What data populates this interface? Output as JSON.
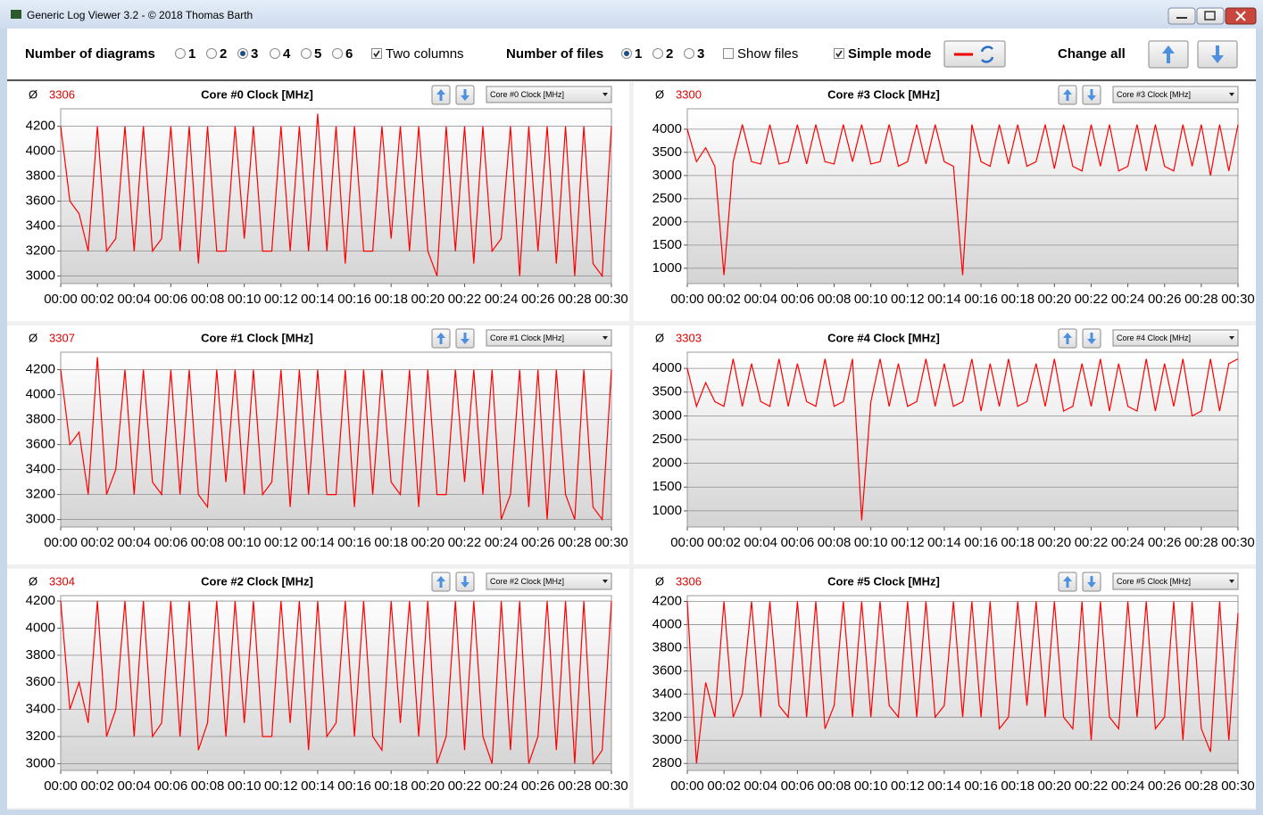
{
  "window": {
    "title": "Generic Log Viewer 3.2 - © 2018 Thomas Barth"
  },
  "toolbar": {
    "diagrams_label": "Number of diagrams",
    "diagram_options": [
      "1",
      "2",
      "3",
      "4",
      "5",
      "6"
    ],
    "diagrams_selected": 2,
    "two_columns_label": "Two columns",
    "two_columns": true,
    "files_label": "Number of files",
    "file_options": [
      "1",
      "2",
      "3"
    ],
    "files_selected": 0,
    "show_files_label": "Show files",
    "show_files": false,
    "simple_mode_label": "Simple mode",
    "simple_mode": true,
    "change_all_label": "Change all"
  },
  "chart_data": [
    {
      "type": "line",
      "title": "Core #0 Clock [MHz]",
      "avg_symbol": "Ø",
      "average": 3306,
      "color": "#ff0000",
      "x": [
        0,
        0.5,
        1,
        1.5,
        2,
        2.5,
        3,
        3.5,
        4,
        4.5,
        5,
        5.5,
        6,
        6.5,
        7,
        7.5,
        8,
        8.5,
        9,
        9.5,
        10,
        10.5,
        11,
        11.5,
        12,
        12.5,
        13,
        13.5,
        14,
        14.5,
        15,
        15.5,
        16,
        16.5,
        17,
        17.5,
        18,
        18.5,
        19,
        19.5,
        20,
        20.5,
        21,
        21.5,
        22,
        22.5,
        23,
        23.5,
        24,
        24.5,
        25,
        25.5,
        26,
        26.5,
        27,
        27.5,
        28,
        28.5,
        29,
        29.5,
        30
      ],
      "values": [
        4200,
        3600,
        3500,
        3200,
        4200,
        3200,
        3300,
        4200,
        3200,
        4200,
        3200,
        3300,
        4200,
        3200,
        4200,
        3100,
        4200,
        3200,
        3200,
        4200,
        3300,
        4200,
        3200,
        3200,
        4200,
        3200,
        4200,
        3200,
        4300,
        3200,
        4200,
        3100,
        4200,
        3200,
        3200,
        4200,
        3300,
        4200,
        3200,
        4200,
        3200,
        3000,
        4200,
        3200,
        4200,
        3100,
        4200,
        3200,
        3300,
        4200,
        3000,
        4200,
        3200,
        4200,
        3100,
        4200,
        3000,
        4200,
        3100,
        3000,
        4200
      ],
      "xlim": [
        0,
        30
      ],
      "ylim": [
        2940,
        4340
      ],
      "yticks": [
        3000,
        3200,
        3400,
        3600,
        3800,
        4000,
        4200
      ],
      "xticks": [
        {
          "value": 0,
          "label": "00:00"
        },
        {
          "value": 2,
          "label": "00:02"
        },
        {
          "value": 4,
          "label": "00:04"
        },
        {
          "value": 6,
          "label": "00:06"
        },
        {
          "value": 8,
          "label": "00:08"
        },
        {
          "value": 10,
          "label": "00:10"
        },
        {
          "value": 12,
          "label": "00:12"
        },
        {
          "value": 14,
          "label": "00:14"
        },
        {
          "value": 16,
          "label": "00:16"
        },
        {
          "value": 18,
          "label": "00:18"
        },
        {
          "value": 20,
          "label": "00:20"
        },
        {
          "value": 22,
          "label": "00:22"
        },
        {
          "value": 24,
          "label": "00:24"
        },
        {
          "value": 26,
          "label": "00:26"
        },
        {
          "value": 28,
          "label": "00:28"
        },
        {
          "value": 30,
          "label": "00:30"
        }
      ],
      "grid": true
    },
    {
      "type": "line",
      "title": "Core #1 Clock [MHz]",
      "avg_symbol": "Ø",
      "average": 3307,
      "color": "#ff0000",
      "x": [
        0,
        0.5,
        1,
        1.5,
        2,
        2.5,
        3,
        3.5,
        4,
        4.5,
        5,
        5.5,
        6,
        6.5,
        7,
        7.5,
        8,
        8.5,
        9,
        9.5,
        10,
        10.5,
        11,
        11.5,
        12,
        12.5,
        13,
        13.5,
        14,
        14.5,
        15,
        15.5,
        16,
        16.5,
        17,
        17.5,
        18,
        18.5,
        19,
        19.5,
        20,
        20.5,
        21,
        21.5,
        22,
        22.5,
        23,
        23.5,
        24,
        24.5,
        25,
        25.5,
        26,
        26.5,
        27,
        27.5,
        28,
        28.5,
        29,
        29.5,
        30
      ],
      "values": [
        4200,
        3600,
        3700,
        3200,
        4300,
        3200,
        3400,
        4200,
        3200,
        4200,
        3300,
        3200,
        4200,
        3200,
        4200,
        3200,
        3100,
        4200,
        3300,
        4200,
        3200,
        4200,
        3200,
        3300,
        4200,
        3100,
        4200,
        3200,
        4200,
        3200,
        3200,
        4200,
        3100,
        4200,
        3200,
        4200,
        3300,
        3200,
        4200,
        3100,
        4200,
        3200,
        3200,
        4200,
        3300,
        4200,
        3200,
        4200,
        3000,
        3200,
        4200,
        3100,
        4200,
        3000,
        4200,
        3200,
        3000,
        4200,
        3100,
        3000,
        4200
      ],
      "xlim": [
        0,
        30
      ],
      "ylim": [
        2940,
        4340
      ],
      "yticks": [
        3000,
        3200,
        3400,
        3600,
        3800,
        4000,
        4200
      ],
      "xticks": [
        {
          "value": 0,
          "label": "00:00"
        },
        {
          "value": 2,
          "label": "00:02"
        },
        {
          "value": 4,
          "label": "00:04"
        },
        {
          "value": 6,
          "label": "00:06"
        },
        {
          "value": 8,
          "label": "00:08"
        },
        {
          "value": 10,
          "label": "00:10"
        },
        {
          "value": 12,
          "label": "00:12"
        },
        {
          "value": 14,
          "label": "00:14"
        },
        {
          "value": 16,
          "label": "00:16"
        },
        {
          "value": 18,
          "label": "00:18"
        },
        {
          "value": 20,
          "label": "00:20"
        },
        {
          "value": 22,
          "label": "00:22"
        },
        {
          "value": 24,
          "label": "00:24"
        },
        {
          "value": 26,
          "label": "00:26"
        },
        {
          "value": 28,
          "label": "00:28"
        },
        {
          "value": 30,
          "label": "00:30"
        }
      ],
      "grid": true
    },
    {
      "type": "line",
      "title": "Core #2 Clock [MHz]",
      "avg_symbol": "Ø",
      "average": 3304,
      "color": "#ff0000",
      "x": [
        0,
        0.5,
        1,
        1.5,
        2,
        2.5,
        3,
        3.5,
        4,
        4.5,
        5,
        5.5,
        6,
        6.5,
        7,
        7.5,
        8,
        8.5,
        9,
        9.5,
        10,
        10.5,
        11,
        11.5,
        12,
        12.5,
        13,
        13.5,
        14,
        14.5,
        15,
        15.5,
        16,
        16.5,
        17,
        17.5,
        18,
        18.5,
        19,
        19.5,
        20,
        20.5,
        21,
        21.5,
        22,
        22.5,
        23,
        23.5,
        24,
        24.5,
        25,
        25.5,
        26,
        26.5,
        27,
        27.5,
        28,
        28.5,
        29,
        29.5,
        30
      ],
      "values": [
        4200,
        3400,
        3600,
        3300,
        4200,
        3200,
        3400,
        4200,
        3200,
        4200,
        3200,
        3300,
        4200,
        3200,
        4200,
        3100,
        3300,
        4200,
        3200,
        4200,
        3300,
        4200,
        3200,
        3200,
        4200,
        3300,
        4200,
        3100,
        4200,
        3200,
        3300,
        4200,
        3200,
        4200,
        3200,
        3100,
        4200,
        3300,
        4200,
        3200,
        4200,
        3000,
        3200,
        4200,
        3100,
        4200,
        3200,
        3000,
        4200,
        3100,
        4200,
        3000,
        3200,
        4200,
        3100,
        4200,
        3000,
        4200,
        3000,
        3100,
        4200
      ],
      "xlim": [
        0,
        30
      ],
      "ylim": [
        2950,
        4240
      ],
      "yticks": [
        3000,
        3200,
        3400,
        3600,
        3800,
        4000,
        4200
      ],
      "xticks": [
        {
          "value": 0,
          "label": "00:00"
        },
        {
          "value": 2,
          "label": "00:02"
        },
        {
          "value": 4,
          "label": "00:04"
        },
        {
          "value": 6,
          "label": "00:06"
        },
        {
          "value": 8,
          "label": "00:08"
        },
        {
          "value": 10,
          "label": "00:10"
        },
        {
          "value": 12,
          "label": "00:12"
        },
        {
          "value": 14,
          "label": "00:14"
        },
        {
          "value": 16,
          "label": "00:16"
        },
        {
          "value": 18,
          "label": "00:18"
        },
        {
          "value": 20,
          "label": "00:20"
        },
        {
          "value": 22,
          "label": "00:22"
        },
        {
          "value": 24,
          "label": "00:24"
        },
        {
          "value": 26,
          "label": "00:26"
        },
        {
          "value": 28,
          "label": "00:28"
        },
        {
          "value": 30,
          "label": "00:30"
        }
      ],
      "grid": true
    },
    {
      "type": "line",
      "title": "Core #3 Clock [MHz]",
      "avg_symbol": "Ø",
      "average": 3300,
      "color": "#ff0000",
      "x": [
        0,
        0.5,
        1,
        1.5,
        2,
        2.5,
        3,
        3.5,
        4,
        4.5,
        5,
        5.5,
        6,
        6.5,
        7,
        7.5,
        8,
        8.5,
        9,
        9.5,
        10,
        10.5,
        11,
        11.5,
        12,
        12.5,
        13,
        13.5,
        14,
        14.5,
        15,
        15.5,
        16,
        16.5,
        17,
        17.5,
        18,
        18.5,
        19,
        19.5,
        20,
        20.5,
        21,
        21.5,
        22,
        22.5,
        23,
        23.5,
        24,
        24.5,
        25,
        25.5,
        26,
        26.5,
        27,
        27.5,
        28,
        28.5,
        29,
        29.5,
        30
      ],
      "values": [
        4000,
        3300,
        3600,
        3200,
        850,
        3300,
        4100,
        3300,
        3250,
        4100,
        3250,
        3300,
        4100,
        3250,
        4100,
        3300,
        3250,
        4100,
        3300,
        4100,
        3250,
        3300,
        4100,
        3200,
        3300,
        4100,
        3250,
        4100,
        3300,
        3200,
        850,
        4100,
        3300,
        3200,
        4100,
        3250,
        4100,
        3200,
        3300,
        4100,
        3150,
        4100,
        3200,
        3100,
        4100,
        3200,
        4100,
        3100,
        3200,
        4100,
        3100,
        4100,
        3200,
        3100,
        4100,
        3200,
        4100,
        3000,
        4100,
        3100,
        4100
      ],
      "xlim": [
        0,
        30
      ],
      "ylim": [
        670,
        4440
      ],
      "yticks": [
        1000,
        1500,
        2000,
        2500,
        3000,
        3500,
        4000
      ],
      "xticks": [
        {
          "value": 0,
          "label": "00:00"
        },
        {
          "value": 2,
          "label": "00:02"
        },
        {
          "value": 4,
          "label": "00:04"
        },
        {
          "value": 6,
          "label": "00:06"
        },
        {
          "value": 8,
          "label": "00:08"
        },
        {
          "value": 10,
          "label": "00:10"
        },
        {
          "value": 12,
          "label": "00:12"
        },
        {
          "value": 14,
          "label": "00:14"
        },
        {
          "value": 16,
          "label": "00:16"
        },
        {
          "value": 18,
          "label": "00:18"
        },
        {
          "value": 20,
          "label": "00:20"
        },
        {
          "value": 22,
          "label": "00:22"
        },
        {
          "value": 24,
          "label": "00:24"
        },
        {
          "value": 26,
          "label": "00:26"
        },
        {
          "value": 28,
          "label": "00:28"
        },
        {
          "value": 30,
          "label": "00:30"
        }
      ],
      "grid": true
    },
    {
      "type": "line",
      "title": "Core #4 Clock [MHz]",
      "avg_symbol": "Ø",
      "average": 3303,
      "color": "#ff0000",
      "x": [
        0,
        0.5,
        1,
        1.5,
        2,
        2.5,
        3,
        3.5,
        4,
        4.5,
        5,
        5.5,
        6,
        6.5,
        7,
        7.5,
        8,
        8.5,
        9,
        9.5,
        10,
        10.5,
        11,
        11.5,
        12,
        12.5,
        13,
        13.5,
        14,
        14.5,
        15,
        15.5,
        16,
        16.5,
        17,
        17.5,
        18,
        18.5,
        19,
        19.5,
        20,
        20.5,
        21,
        21.5,
        22,
        22.5,
        23,
        23.5,
        24,
        24.5,
        25,
        25.5,
        26,
        26.5,
        27,
        27.5,
        28,
        28.5,
        29,
        29.5,
        30
      ],
      "values": [
        4000,
        3200,
        3700,
        3300,
        3200,
        4200,
        3200,
        4100,
        3300,
        3200,
        4200,
        3200,
        4100,
        3300,
        3200,
        4200,
        3200,
        3300,
        4200,
        800,
        3300,
        4200,
        3200,
        4100,
        3200,
        3300,
        4200,
        3200,
        4100,
        3200,
        3300,
        4200,
        3100,
        4100,
        3200,
        4200,
        3200,
        3300,
        4100,
        3200,
        4200,
        3100,
        3200,
        4100,
        3200,
        4200,
        3100,
        4100,
        3200,
        3100,
        4200,
        3100,
        4100,
        3200,
        4200,
        3000,
        3100,
        4200,
        3100,
        4100,
        4200
      ],
      "xlim": [
        0,
        30
      ],
      "ylim": [
        660,
        4340
      ],
      "yticks": [
        1000,
        1500,
        2000,
        2500,
        3000,
        3500,
        4000
      ],
      "xticks": [
        {
          "value": 0,
          "label": "00:00"
        },
        {
          "value": 2,
          "label": "00:02"
        },
        {
          "value": 4,
          "label": "00:04"
        },
        {
          "value": 6,
          "label": "00:06"
        },
        {
          "value": 8,
          "label": "00:08"
        },
        {
          "value": 10,
          "label": "00:10"
        },
        {
          "value": 12,
          "label": "00:12"
        },
        {
          "value": 14,
          "label": "00:14"
        },
        {
          "value": 16,
          "label": "00:16"
        },
        {
          "value": 18,
          "label": "00:18"
        },
        {
          "value": 20,
          "label": "00:20"
        },
        {
          "value": 22,
          "label": "00:22"
        },
        {
          "value": 24,
          "label": "00:24"
        },
        {
          "value": 26,
          "label": "00:26"
        },
        {
          "value": 28,
          "label": "00:28"
        },
        {
          "value": 30,
          "label": "00:30"
        }
      ],
      "grid": true
    },
    {
      "type": "line",
      "title": "Core #5 Clock [MHz]",
      "avg_symbol": "Ø",
      "average": 3306,
      "color": "#ff0000",
      "x": [
        0,
        0.5,
        1,
        1.5,
        2,
        2.5,
        3,
        3.5,
        4,
        4.5,
        5,
        5.5,
        6,
        6.5,
        7,
        7.5,
        8,
        8.5,
        9,
        9.5,
        10,
        10.5,
        11,
        11.5,
        12,
        12.5,
        13,
        13.5,
        14,
        14.5,
        15,
        15.5,
        16,
        16.5,
        17,
        17.5,
        18,
        18.5,
        19,
        19.5,
        20,
        20.5,
        21,
        21.5,
        22,
        22.5,
        23,
        23.5,
        24,
        24.5,
        25,
        25.5,
        26,
        26.5,
        27,
        27.5,
        28,
        28.5,
        29,
        29.5,
        30
      ],
      "values": [
        4200,
        2800,
        3500,
        3200,
        4200,
        3200,
        3400,
        4200,
        3200,
        4200,
        3300,
        3200,
        4200,
        3200,
        4200,
        3100,
        3300,
        4200,
        3200,
        4200,
        3200,
        4200,
        3300,
        3200,
        4200,
        3200,
        4200,
        3200,
        3300,
        4200,
        3200,
        4200,
        3200,
        4200,
        3100,
        3200,
        4200,
        3300,
        4200,
        3200,
        4200,
        3200,
        3100,
        4200,
        3000,
        4200,
        3200,
        3100,
        4200,
        3200,
        4200,
        3100,
        3200,
        4200,
        3000,
        4200,
        3100,
        2900,
        4200,
        3000,
        4100
      ],
      "xlim": [
        0,
        30
      ],
      "ylim": [
        2740,
        4250
      ],
      "yticks": [
        2800,
        3000,
        3200,
        3400,
        3600,
        3800,
        4000,
        4200
      ],
      "xticks": [
        {
          "value": 0,
          "label": "00:00"
        },
        {
          "value": 2,
          "label": "00:02"
        },
        {
          "value": 4,
          "label": "00:04"
        },
        {
          "value": 6,
          "label": "00:06"
        },
        {
          "value": 8,
          "label": "00:08"
        },
        {
          "value": 10,
          "label": "00:10"
        },
        {
          "value": 12,
          "label": "00:12"
        },
        {
          "value": 14,
          "label": "00:14"
        },
        {
          "value": 16,
          "label": "00:16"
        },
        {
          "value": 18,
          "label": "00:18"
        },
        {
          "value": 20,
          "label": "00:20"
        },
        {
          "value": 22,
          "label": "00:22"
        },
        {
          "value": 24,
          "label": "00:24"
        },
        {
          "value": 26,
          "label": "00:26"
        },
        {
          "value": 28,
          "label": "00:28"
        },
        {
          "value": 30,
          "label": "00:30"
        }
      ],
      "grid": true
    }
  ]
}
